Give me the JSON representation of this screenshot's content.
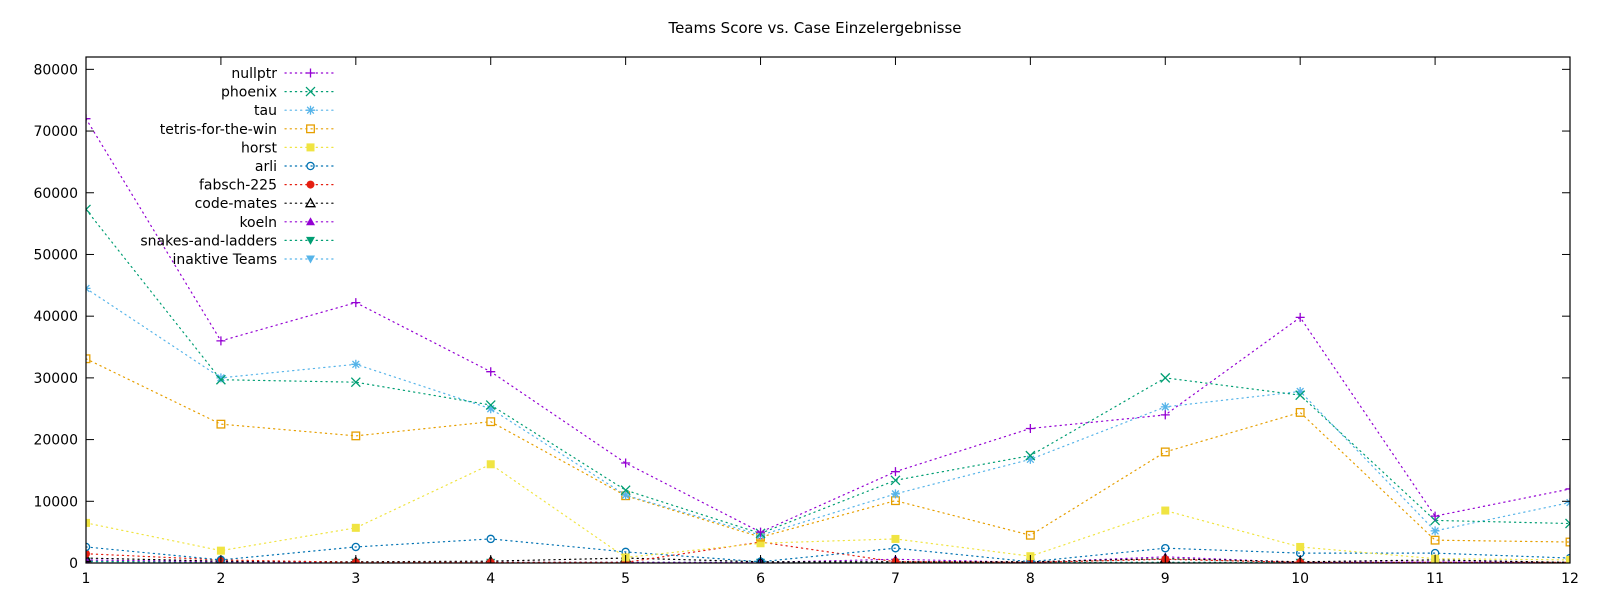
{
  "chart_data": {
    "type": "line",
    "title": "Teams Score vs. Case Einzelergebnisse",
    "xlabel": "",
    "ylabel": "",
    "x": [
      1,
      2,
      3,
      4,
      5,
      6,
      7,
      8,
      9,
      10,
      11,
      12
    ],
    "xlim": [
      1,
      12
    ],
    "ylim": [
      0,
      82000
    ],
    "yticks": [
      0,
      10000,
      20000,
      30000,
      40000,
      50000,
      60000,
      70000,
      80000
    ],
    "grid": false,
    "legend_position": "top-left",
    "line_style": "dotted",
    "series": [
      {
        "name": "nullptr",
        "color": "#9400d3",
        "marker": "plus",
        "values": [
          72000,
          36000,
          42200,
          31000,
          16200,
          5000,
          14800,
          21800,
          24000,
          39800,
          7600,
          12000
        ]
      },
      {
        "name": "phoenix",
        "color": "#009e73",
        "marker": "cross",
        "values": [
          57300,
          29700,
          29300,
          25600,
          11800,
          4800,
          13400,
          17400,
          30000,
          27200,
          6900,
          6400
        ]
      },
      {
        "name": "tau",
        "color": "#56b4e9",
        "marker": "asterisk",
        "values": [
          44500,
          30000,
          32200,
          25000,
          11000,
          4500,
          11200,
          16800,
          25300,
          27800,
          5200,
          9800
        ]
      },
      {
        "name": "tetris-for-the-win",
        "color": "#e69f00",
        "marker": "square-open",
        "values": [
          33100,
          22500,
          20600,
          22900,
          10900,
          4200,
          10100,
          4500,
          18000,
          24400,
          3700,
          3400
        ]
      },
      {
        "name": "horst",
        "color": "#f0e442",
        "marker": "square-filled",
        "values": [
          6500,
          2000,
          5700,
          16000,
          900,
          3200,
          3900,
          1100,
          8500,
          2600,
          700,
          500
        ]
      },
      {
        "name": "arli",
        "color": "#0072b2",
        "marker": "circle-open",
        "values": [
          2600,
          500,
          2600,
          3900,
          1800,
          200,
          2400,
          200,
          2400,
          1600,
          1600,
          800
        ]
      },
      {
        "name": "fabsch-225",
        "color": "#e51e10",
        "marker": "circle-filled",
        "values": [
          1500,
          500,
          100,
          100,
          100,
          3400,
          200,
          100,
          600,
          100,
          100,
          100
        ]
      },
      {
        "name": "code-mates",
        "color": "#000000",
        "marker": "triangle-open",
        "values": [
          800,
          300,
          200,
          300,
          800,
          200,
          200,
          200,
          700,
          200,
          500,
          100
        ]
      },
      {
        "name": "koeln",
        "color": "#9400d3",
        "marker": "triangle-filled",
        "values": [
          500,
          200,
          100,
          100,
          100,
          100,
          600,
          100,
          1000,
          100,
          200,
          100
        ]
      },
      {
        "name": "snakes-and-ladders",
        "color": "#009e73",
        "marker": "triangle-down-filled",
        "values": [
          300,
          100,
          100,
          100,
          100,
          100,
          100,
          100,
          100,
          100,
          100,
          100
        ]
      },
      {
        "name": "inaktive Teams",
        "color": "#56b4e9",
        "marker": "triangle-down-filled",
        "values": [
          200,
          100,
          100,
          100,
          100,
          100,
          100,
          100,
          100,
          100,
          100,
          100
        ]
      }
    ]
  }
}
